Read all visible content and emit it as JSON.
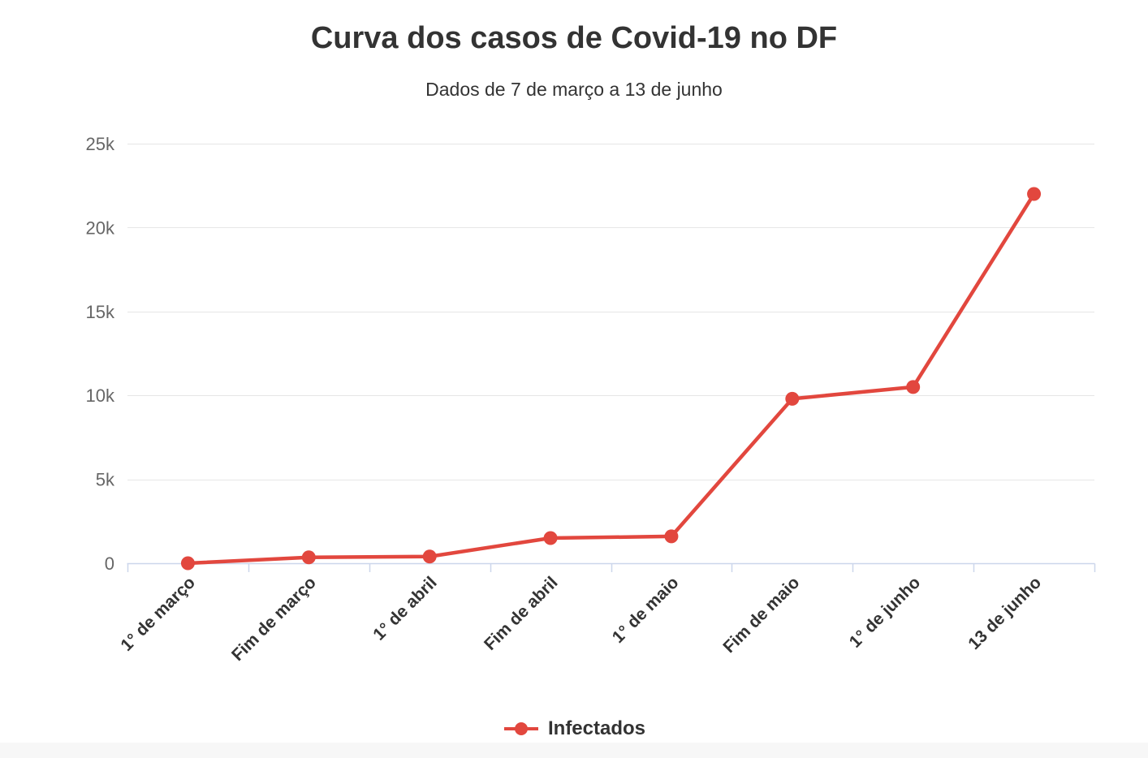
{
  "chart_data": {
    "type": "line",
    "title": "Curva dos casos de Covid-19 no DF",
    "subtitle": "Dados de 7 de março a 13 de junho",
    "categories": [
      "1° de março",
      "Fim de março",
      "1° de abril",
      "Fim de abril",
      "1° de maio",
      "Fim de maio",
      "1° de junho",
      "13 de junho"
    ],
    "series": [
      {
        "name": "Infectados",
        "color": "#e2473e",
        "values": [
          0,
          350,
          400,
          1500,
          1600,
          9800,
          10500,
          22000
        ]
      }
    ],
    "xlabel": "",
    "ylabel": "",
    "ylim": [
      0,
      25000
    ],
    "yticks": [
      {
        "value": 0,
        "label": "0"
      },
      {
        "value": 5000,
        "label": "5k"
      },
      {
        "value": 10000,
        "label": "10k"
      },
      {
        "value": 15000,
        "label": "15k"
      },
      {
        "value": 20000,
        "label": "20k"
      },
      {
        "value": 25000,
        "label": "25k"
      }
    ],
    "grid": true,
    "legend_position": "bottom-center"
  },
  "colors": {
    "series_red": "#e2473e",
    "gridline": "#e6e6e6",
    "axis_line": "#ccd6eb",
    "text_dark": "#333333",
    "text_muted": "#666666",
    "footer_strip": "#f7f7f7",
    "background": "#ffffff"
  }
}
